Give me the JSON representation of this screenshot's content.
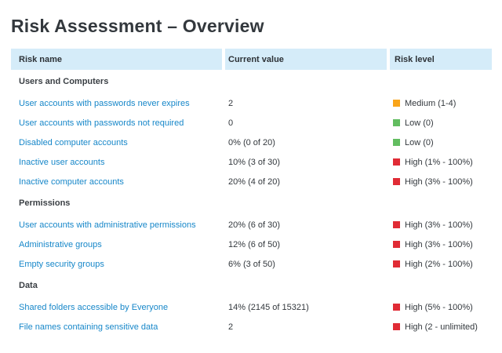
{
  "page": {
    "title": "Risk Assessment – Overview"
  },
  "table": {
    "columns": [
      {
        "label": "Risk name"
      },
      {
        "label": "Current value"
      },
      {
        "label": "Risk level"
      }
    ],
    "sections": [
      {
        "name": "Users and Computers",
        "rows": [
          {
            "risk_name": "User accounts with passwords never expires",
            "current_value": "2",
            "risk_level": "Medium (1-4)",
            "level": "medium"
          },
          {
            "risk_name": "User accounts with passwords not required",
            "current_value": "0",
            "risk_level": "Low (0)",
            "level": "low"
          },
          {
            "risk_name": "Disabled computer accounts",
            "current_value": "0% (0 of 20)",
            "risk_level": "Low (0)",
            "level": "low"
          },
          {
            "risk_name": "Inactive user accounts",
            "current_value": "10% (3 of 30)",
            "risk_level": "High (1% - 100%)",
            "level": "high"
          },
          {
            "risk_name": "Inactive computer accounts",
            "current_value": "20% (4 of 20)",
            "risk_level": "High (3% - 100%)",
            "level": "high"
          }
        ]
      },
      {
        "name": "Permissions",
        "rows": [
          {
            "risk_name": "User accounts with administrative permissions",
            "current_value": "20% (6 of 30)",
            "risk_level": "High (3% - 100%)",
            "level": "high"
          },
          {
            "risk_name": "Administrative groups",
            "current_value": "12% (6 of 50)",
            "risk_level": "High (3% - 100%)",
            "level": "high"
          },
          {
            "risk_name": "Empty security groups",
            "current_value": "6% (3 of 50)",
            "risk_level": "High (2% - 100%)",
            "level": "high"
          }
        ]
      },
      {
        "name": "Data",
        "rows": [
          {
            "risk_name": "Shared folders accessible by Everyone",
            "current_value": "14% (2145 of 15321)",
            "risk_level": "High (5% - 100%)",
            "level": "high"
          },
          {
            "risk_name": "File names containing sensitive data",
            "current_value": "2",
            "risk_level": "High (2 - unlimited)",
            "level": "high"
          }
        ]
      }
    ]
  },
  "colors": {
    "high": "#e02b35",
    "medium": "#f9a51a",
    "low": "#62bd60",
    "header_bg": "#d5ecf9",
    "link": "#1787c9"
  }
}
